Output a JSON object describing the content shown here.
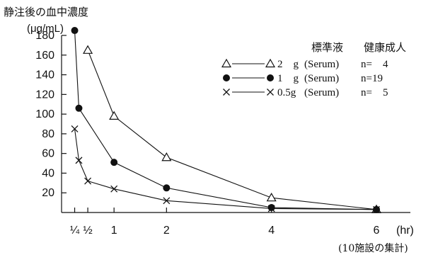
{
  "chart_data": {
    "type": "line",
    "title": "静注後の血中濃度",
    "ylabel": "(μg/mL)",
    "xunit": "(hr)",
    "footnote": "(10施設の集計)",
    "ylim": [
      0,
      190
    ],
    "xlim": [
      0,
      6.5
    ],
    "yticks": [
      20,
      40,
      60,
      80,
      100,
      120,
      140,
      160,
      180
    ],
    "xticks": [
      {
        "value": 0.25,
        "label": "¼"
      },
      {
        "value": 0.5,
        "label": "½"
      },
      {
        "value": 1,
        "label": "1"
      },
      {
        "value": 2,
        "label": "2"
      },
      {
        "value": 4,
        "label": "4"
      },
      {
        "value": 6,
        "label": "6"
      }
    ],
    "legend_headers": [
      "標準液",
      "健康成人"
    ],
    "series": [
      {
        "marker": "triangle",
        "dose": "2　g",
        "fluid": "(Serum)",
        "subjects": "n=　4",
        "x": [
          0.5,
          1,
          2,
          4,
          6
        ],
        "y": [
          165,
          98,
          56,
          15,
          3
        ]
      },
      {
        "marker": "circle",
        "dose": "1　g",
        "fluid": "(Serum)",
        "subjects": "n=19",
        "x": [
          0.25,
          0.33,
          1,
          2,
          4,
          6
        ],
        "y": [
          185,
          106,
          51,
          25,
          5,
          3
        ]
      },
      {
        "marker": "cross",
        "dose": "0.5g",
        "fluid": "(Serum)",
        "subjects": "n=　5",
        "x": [
          0.25,
          0.33,
          0.5,
          1,
          2,
          4,
          6
        ],
        "y": [
          85,
          53,
          32,
          24,
          12,
          4,
          3
        ]
      }
    ],
    "grid": false,
    "legend_position": "top-right"
  }
}
